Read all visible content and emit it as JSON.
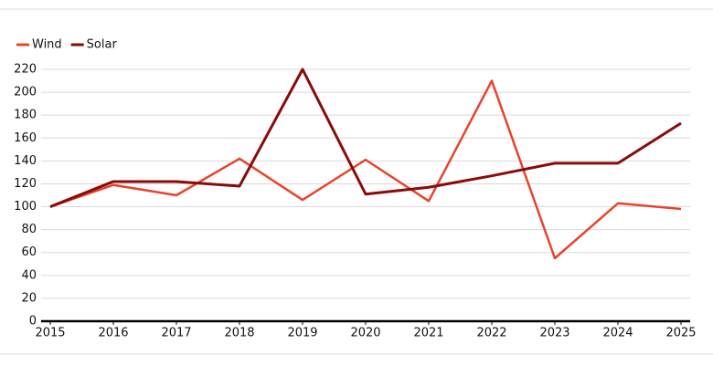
{
  "chart_data": {
    "type": "line",
    "x": [
      2015,
      2016,
      2017,
      2018,
      2019,
      2020,
      2021,
      2022,
      2023,
      2024,
      2025
    ],
    "series": [
      {
        "name": "Wind",
        "color": "#e8432d",
        "values": [
          100,
          119,
          110,
          142,
          106,
          141,
          105,
          210,
          55,
          103,
          98
        ]
      },
      {
        "name": "Solar",
        "color": "#8b0a0a",
        "values": [
          100,
          122,
          122,
          118,
          220,
          111,
          117,
          127,
          138,
          138,
          173
        ]
      }
    ],
    "xlim": [
      2015,
      2025
    ],
    "xticks": [
      2015,
      2016,
      2017,
      2018,
      2019,
      2020,
      2021,
      2022,
      2023,
      2024,
      2025
    ],
    "ylim": [
      0,
      220
    ],
    "yticks": [
      0,
      20,
      40,
      60,
      80,
      100,
      120,
      140,
      160,
      180,
      200,
      220
    ],
    "grid": true,
    "legend": "top-left"
  }
}
